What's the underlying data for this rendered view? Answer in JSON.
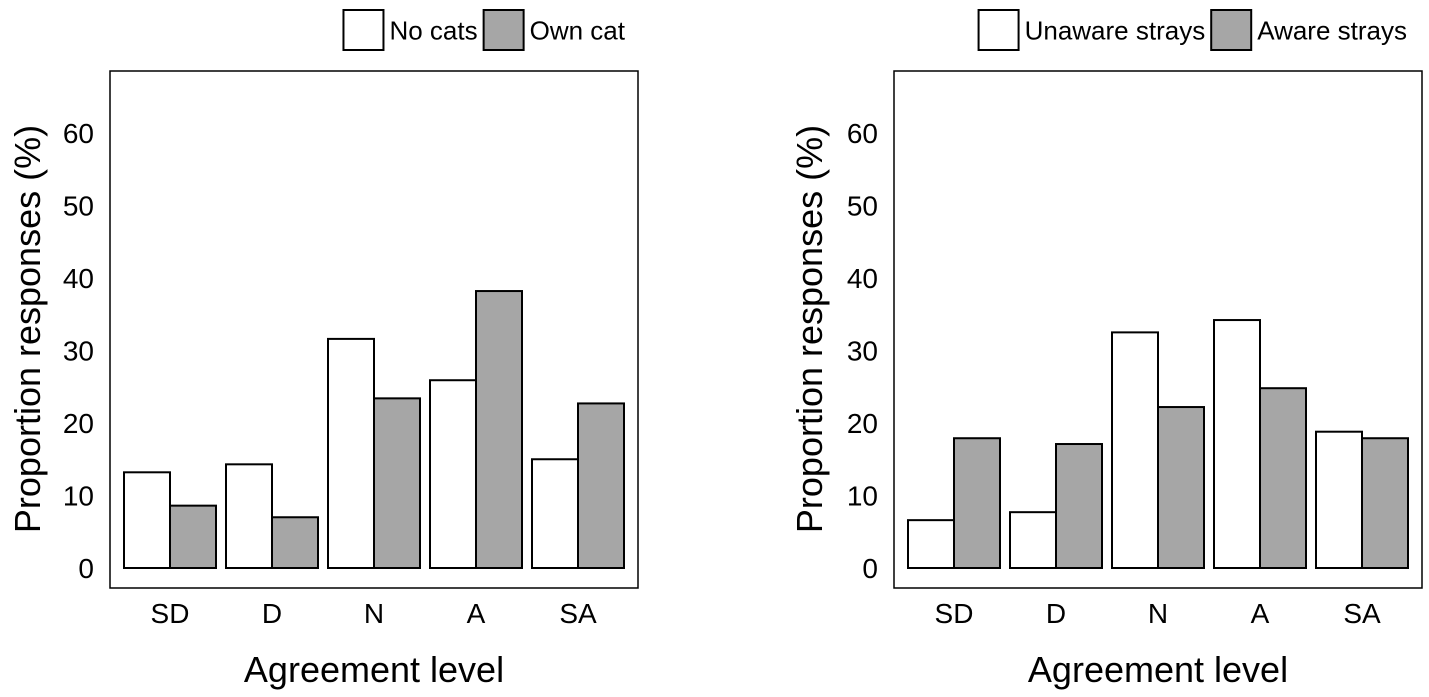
{
  "chart_data": [
    {
      "type": "bar",
      "xlabel": "Agreement level",
      "ylabel": "Proportion responses (%)",
      "ylim": [
        0,
        68
      ],
      "yticks": [
        0,
        10,
        20,
        30,
        40,
        50,
        60
      ],
      "categories": [
        "SD",
        "D",
        "N",
        "A",
        "SA"
      ],
      "legend_position": "top-right",
      "grid": false,
      "series": [
        {
          "name": "No cats",
          "color": "#ffffff",
          "values": [
            13.2,
            14.3,
            31.6,
            25.9,
            15.0
          ]
        },
        {
          "name": "Own cat",
          "color": "#a6a6a6",
          "values": [
            8.6,
            7.0,
            23.4,
            38.2,
            22.7
          ]
        }
      ]
    },
    {
      "type": "bar",
      "xlabel": "Agreement level",
      "ylabel": "Proportion responses (%)",
      "ylim": [
        0,
        68
      ],
      "yticks": [
        0,
        10,
        20,
        30,
        40,
        50,
        60
      ],
      "categories": [
        "SD",
        "D",
        "N",
        "A",
        "SA"
      ],
      "legend_position": "top-right",
      "grid": false,
      "series": [
        {
          "name": "Unaware strays",
          "color": "#ffffff",
          "values": [
            6.6,
            7.7,
            32.5,
            34.2,
            18.8
          ]
        },
        {
          "name": "Aware strays",
          "color": "#a6a6a6",
          "values": [
            17.9,
            17.1,
            22.2,
            24.8,
            17.9
          ]
        }
      ]
    }
  ]
}
